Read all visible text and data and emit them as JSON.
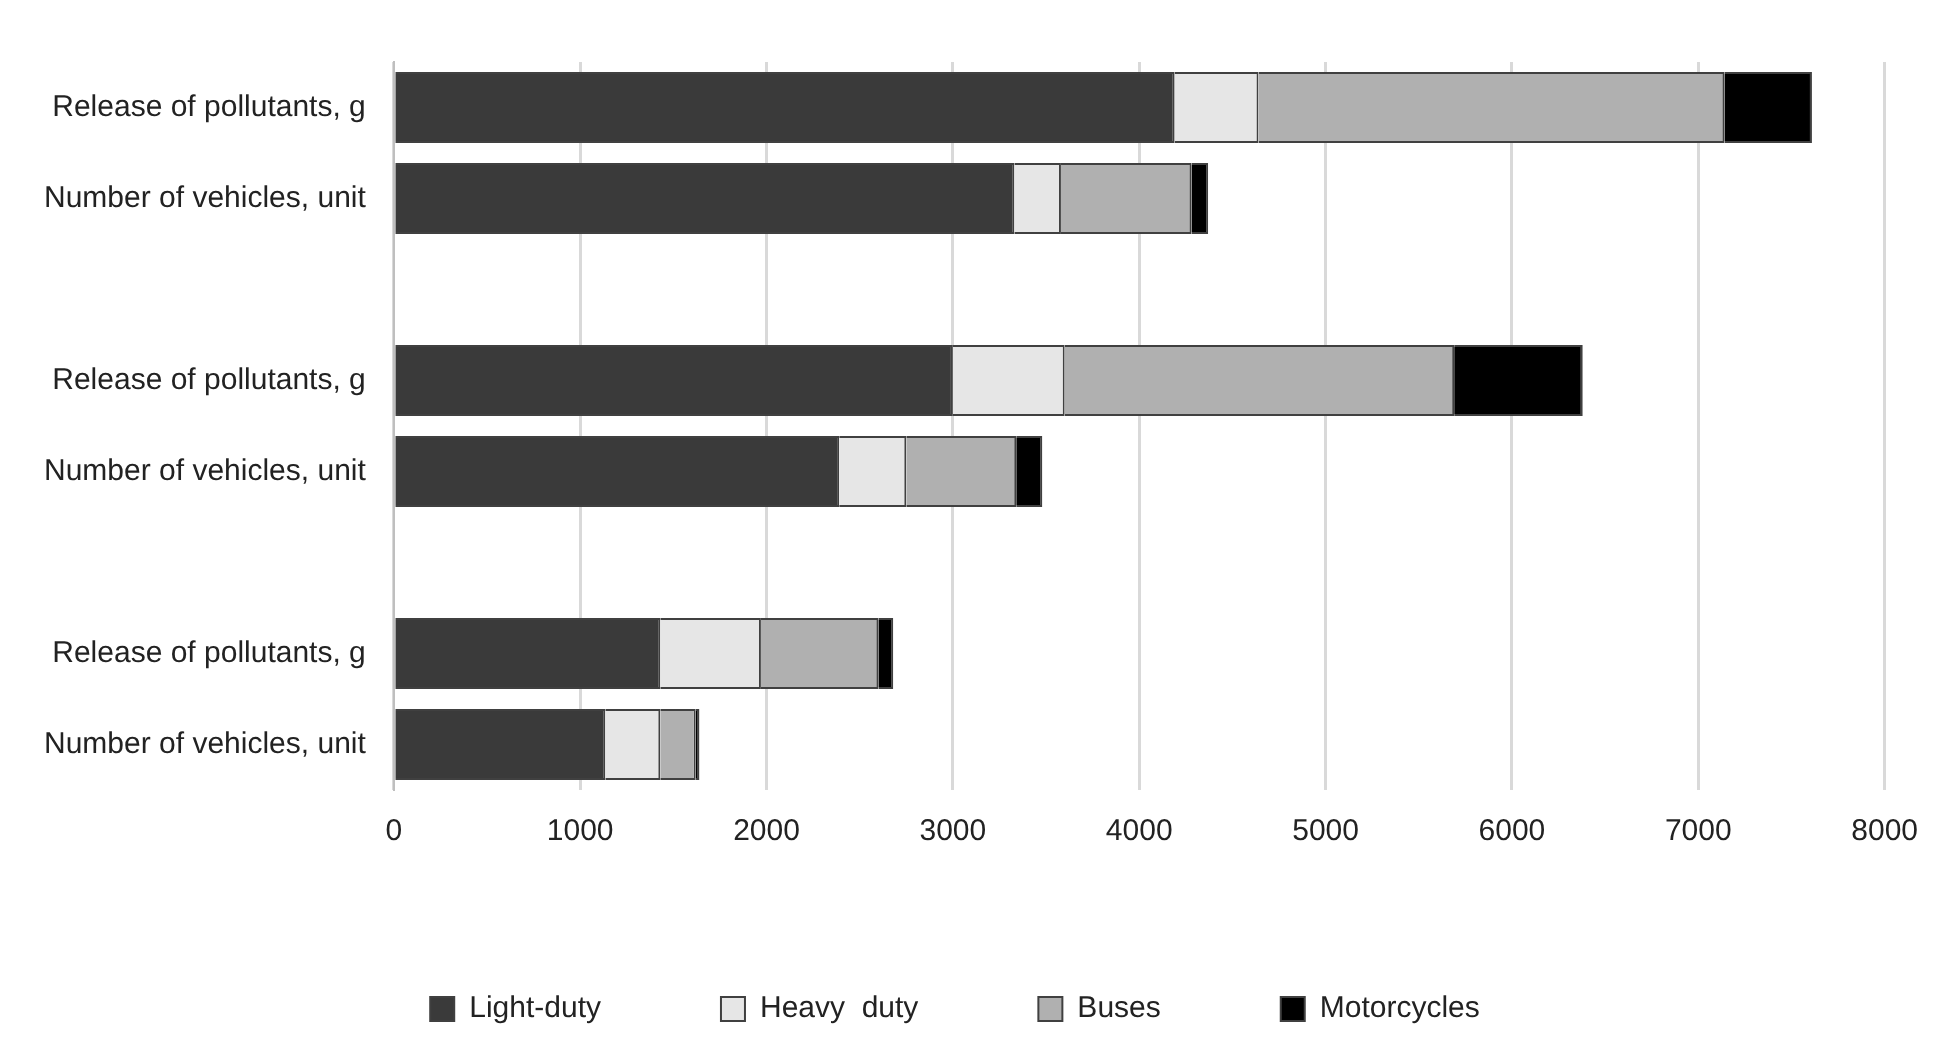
{
  "chart_data": {
    "type": "bar",
    "orientation": "horizontal",
    "stacked": true,
    "categories": [
      "Release of pollutants, g",
      "Number of vehicles, unit",
      null,
      "Release of pollutants, g",
      "Number of vehicles, unit",
      null,
      "Release of pollutants, g",
      "Number of vehicles, unit"
    ],
    "series": [
      {
        "name": "Light-duty",
        "color": "#3a3a3a",
        "values": [
          4190,
          3330,
          null,
          3000,
          2390,
          null,
          1430,
          1135
        ]
      },
      {
        "name": "Heavy  duty",
        "color": "#e6e6e6",
        "values": [
          450,
          250,
          null,
          600,
          360,
          null,
          540,
          295
        ]
      },
      {
        "name": "Buses",
        "color": "#b0b0b0",
        "values": [
          2500,
          700,
          null,
          2090,
          590,
          null,
          630,
          190
        ]
      },
      {
        "name": "Motorcycles",
        "color": "#000000",
        "values": [
          470,
          90,
          null,
          690,
          140,
          null,
          80,
          20
        ]
      }
    ],
    "xlim": [
      0,
      8000
    ],
    "xticks": [
      0,
      1000,
      2000,
      3000,
      4000,
      5000,
      6000,
      7000,
      8000
    ],
    "grid": "x",
    "legend": "bottom"
  }
}
